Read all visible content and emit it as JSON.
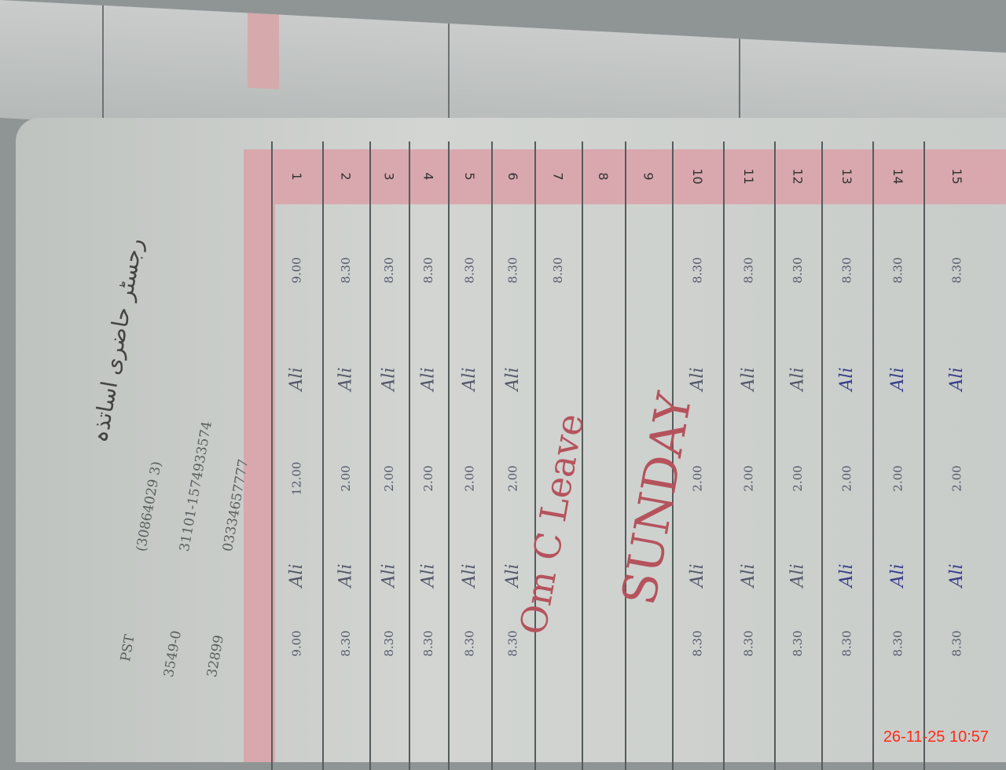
{
  "header": {
    "title_urdu": "رجسٹر حاضری اساتذہ",
    "info_lines": [
      "PST",
      "(30864029 3)",
      "3549-0",
      "31101-1574933574",
      "32899",
      "03334657777"
    ]
  },
  "register": {
    "rows": [
      {
        "n": "1",
        "in": "9.00",
        "sign1": "Ali",
        "mid": "12.00",
        "sign2": "Ali",
        "out": "9.00"
      },
      {
        "n": "2",
        "in": "8.30",
        "sign1": "Ali",
        "mid": "2.00",
        "sign2": "Ali",
        "out": "8.30"
      },
      {
        "n": "3",
        "in": "8.30",
        "sign1": "Ali",
        "mid": "2.00",
        "sign2": "Ali",
        "out": "8.30"
      },
      {
        "n": "4",
        "in": "8.30",
        "sign1": "Ali",
        "mid": "2.00",
        "sign2": "Ali",
        "out": "8.30"
      },
      {
        "n": "5",
        "in": "8.30",
        "sign1": "Ali",
        "mid": "2.00",
        "sign2": "Ali",
        "out": "8.30"
      },
      {
        "n": "6",
        "in": "8.30",
        "sign1": "Ali",
        "mid": "2.00",
        "sign2": "Ali",
        "out": "8.30"
      },
      {
        "n": "7",
        "in": "8.30",
        "sign1": "",
        "mid": "",
        "sign2": "",
        "out": ""
      },
      {
        "n": "8",
        "in": "",
        "sign1": "",
        "mid": "",
        "sign2": "",
        "out": ""
      },
      {
        "n": "9",
        "in": "",
        "sign1": "",
        "mid": "",
        "sign2": "",
        "out": ""
      },
      {
        "n": "10",
        "in": "8.30",
        "sign1": "Ali",
        "mid": "2.00",
        "sign2": "Ali",
        "out": "8.30"
      },
      {
        "n": "11",
        "in": "8.30",
        "sign1": "Ali",
        "mid": "2.00",
        "sign2": "Ali",
        "out": "8.30"
      },
      {
        "n": "12",
        "in": "8.30",
        "sign1": "Ali",
        "mid": "2.00",
        "sign2": "Ali",
        "out": "8.30"
      },
      {
        "n": "13",
        "in": "8.30",
        "sign1": "Ali",
        "mid": "2.00",
        "sign2": "Ali",
        "out": "8.30"
      },
      {
        "n": "14",
        "in": "8.30",
        "sign1": "Ali",
        "mid": "2.00",
        "sign2": "Ali",
        "out": "8.30"
      },
      {
        "n": "15",
        "in": "8.30",
        "sign1": "Ali",
        "mid": "2.00",
        "sign2": "Ali",
        "out": "8.30"
      }
    ],
    "leave_text": "Om C Leave",
    "sunday_text": "SUNDAY"
  },
  "photo_timestamp": "26-11-25  10:57",
  "colors": {
    "pink_band": "#d9a8ae",
    "ink_red": "#b5535d",
    "ink_blue": "#3a3f8a",
    "timestamp": "#ff2a1a"
  }
}
